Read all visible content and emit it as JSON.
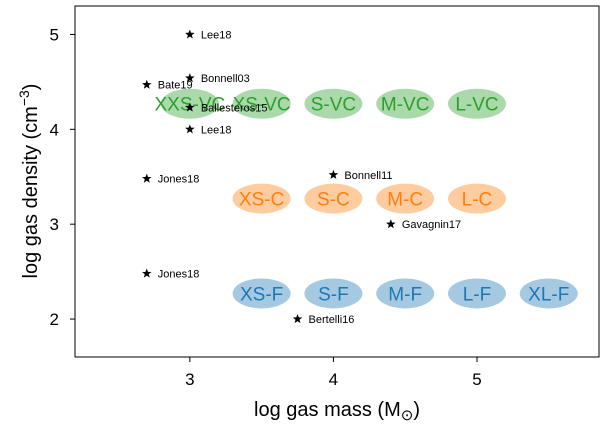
{
  "chart_data": {
    "type": "scatter",
    "xlabel": "log gas mass (M",
    "xlabel_symbol": "⊙",
    "xlabel_close": ")",
    "ylabel": "log gas density (cm",
    "ylabel_exp": "−3",
    "ylabel_close": ")",
    "xlim": [
      2.2,
      5.85
    ],
    "ylim": [
      1.6,
      5.3
    ],
    "xticks": [
      3,
      4,
      5
    ],
    "yticks": [
      2,
      3,
      4,
      5
    ],
    "grid": false,
    "colors": {
      "VC": "#2ca02c",
      "C": "#ff7f0e",
      "F": "#1f77b4",
      "star": "#000000"
    },
    "simulation_groups": [
      {
        "name": "VC",
        "y": 4.27,
        "points": [
          {
            "label": "XXS-VC",
            "x": 3.0
          },
          {
            "label": "XS-VC",
            "x": 3.5
          },
          {
            "label": "S-VC",
            "x": 4.0
          },
          {
            "label": "M-VC",
            "x": 4.5
          },
          {
            "label": "L-VC",
            "x": 5.0
          }
        ]
      },
      {
        "name": "C",
        "y": 3.27,
        "points": [
          {
            "label": "XS-C",
            "x": 3.5
          },
          {
            "label": "S-C",
            "x": 4.0
          },
          {
            "label": "M-C",
            "x": 4.5
          },
          {
            "label": "L-C",
            "x": 5.0
          }
        ]
      },
      {
        "name": "F",
        "y": 2.27,
        "points": [
          {
            "label": "XS-F",
            "x": 3.5
          },
          {
            "label": "S-F",
            "x": 4.0
          },
          {
            "label": "M-F",
            "x": 4.5
          },
          {
            "label": "L-F",
            "x": 5.0
          },
          {
            "label": "XL-F",
            "x": 5.5
          }
        ]
      }
    ],
    "literature": [
      {
        "label": "Lee18",
        "x": 3.0,
        "y": 5.0
      },
      {
        "label": "Bonnell03",
        "x": 3.0,
        "y": 4.54
      },
      {
        "label": "Bate19",
        "x": 2.7,
        "y": 4.47
      },
      {
        "label": "Ballesteros15",
        "x": 3.0,
        "y": 4.23
      },
      {
        "label": "Lee18",
        "x": 3.0,
        "y": 4.0
      },
      {
        "label": "Jones18",
        "x": 2.7,
        "y": 3.48
      },
      {
        "label": "Bonnell11",
        "x": 4.0,
        "y": 3.52
      },
      {
        "label": "Gavagnin17",
        "x": 4.4,
        "y": 3.0
      },
      {
        "label": "Jones18",
        "x": 2.7,
        "y": 2.48
      },
      {
        "label": "Bertelli16",
        "x": 3.75,
        "y": 2.0
      }
    ]
  }
}
